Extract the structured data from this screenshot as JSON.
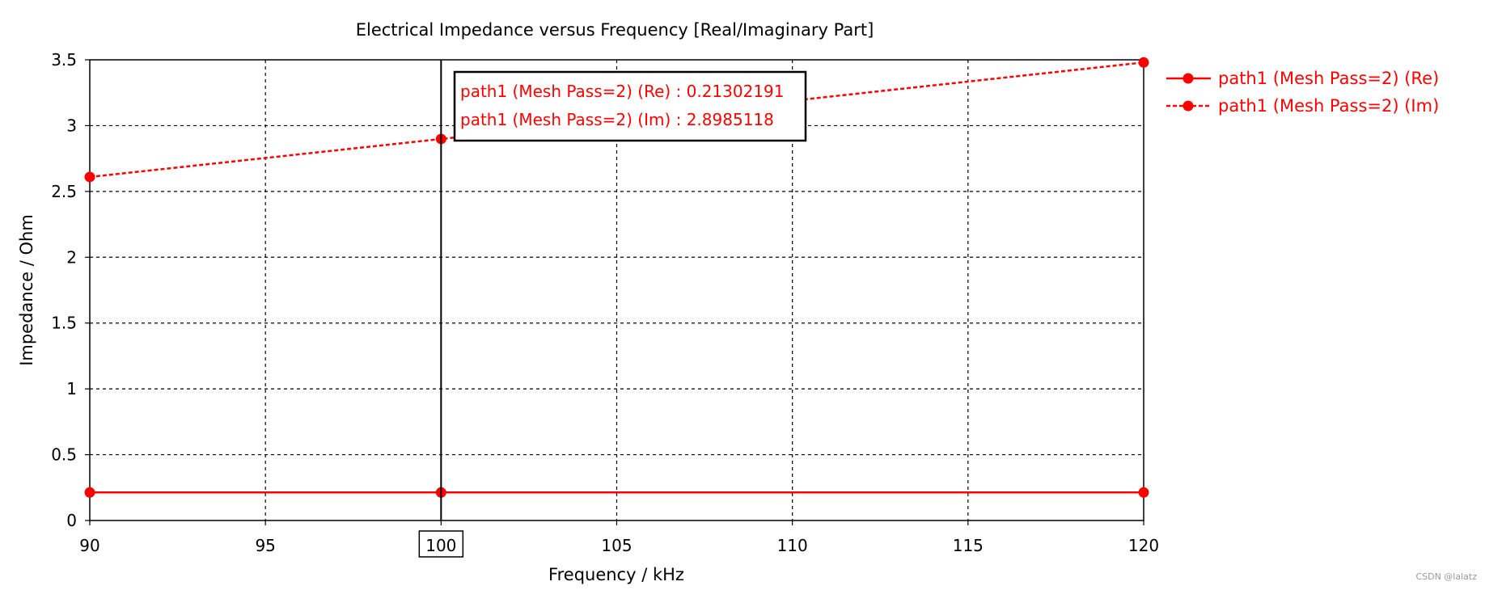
{
  "chart_data": {
    "type": "line",
    "title": "Electrical Impedance versus Frequency [Real/Imaginary Part]",
    "xlabel": "Frequency / kHz",
    "ylabel": "Impedance / Ohm",
    "xlim": [
      90,
      120
    ],
    "ylim": [
      0,
      3.5
    ],
    "x_ticks": [
      "90",
      "95",
      "100",
      "105",
      "110",
      "115",
      "120"
    ],
    "x_tick_values": [
      90,
      95,
      100,
      105,
      110,
      115,
      120
    ],
    "y_ticks": [
      "0",
      "0.5",
      "1",
      "1.5",
      "2",
      "2.5",
      "3",
      "3.5"
    ],
    "y_tick_values": [
      0,
      0.5,
      1,
      1.5,
      2,
      2.5,
      3,
      3.5
    ],
    "grid": true,
    "legend_position": "right",
    "series": [
      {
        "name": "path1 (Mesh Pass=2) (Re)",
        "style": "solid",
        "color": "#ff0000",
        "x": [
          90,
          100,
          120
        ],
        "values": [
          0.213,
          0.21302191,
          0.213
        ]
      },
      {
        "name": "path1 (Mesh Pass=2) (Im)",
        "style": "dashed",
        "color": "#ff0000",
        "x": [
          90,
          100,
          120
        ],
        "values": [
          2.61,
          2.8985118,
          3.48
        ]
      }
    ],
    "marker": {
      "x": 100,
      "label": "100"
    },
    "tooltip": {
      "lines": [
        "path1 (Mesh Pass=2) (Re) : 0.21302191",
        "path1 (Mesh Pass=2) (Im) : 2.8985118"
      ]
    }
  },
  "watermark": "CSDN @lalatz"
}
